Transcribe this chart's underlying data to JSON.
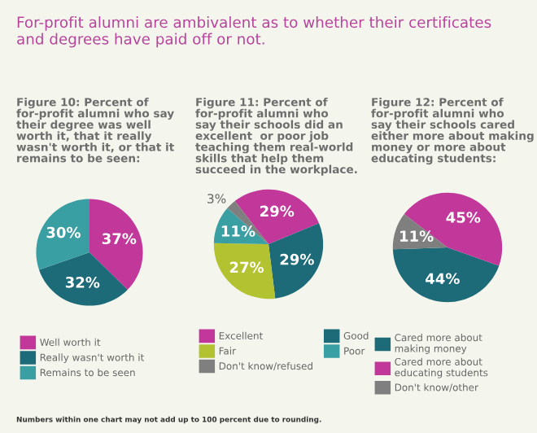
{
  "chart_data": [
    {
      "type": "pie",
      "title": "Figure 10: Percent of\nfor-profit alumni who say\ntheir degree was well\nworth it, that it really\nwasn't worth it, or that it\nremains to be seen:",
      "annotations": [
        "For-profit alumni are ambivalent as to whether their certificates\nand degrees have paid off or not.",
        "Numbers within one chart may not add up to 100 percent due to rounding."
      ],
      "categories": [
        "Well worth it",
        "Really wasn't worth it",
        "Remains to be seen"
      ],
      "values": [
        37,
        32,
        30
      ],
      "value_labels": [
        "37%",
        "32%",
        "30%"
      ],
      "colors": [
        "#c2379a",
        "#1d6a78",
        "#3a9fa3"
      ],
      "legend": "bottom"
    },
    {
      "type": "pie",
      "title": "Figure 11: Percent of\nfor-profit alumni who\nsay their schools did an\nexcellent  or poor job\nteaching them real-world\nskills that help them\nsucceed in the workplace.",
      "categories": [
        "Excellent",
        "Good",
        "Fair",
        "Poor",
        "Don't know/refused"
      ],
      "values": [
        29,
        29,
        27,
        11,
        3
      ],
      "value_labels": [
        "29%",
        "29%",
        "27%",
        "11%",
        "3%"
      ],
      "colors": [
        "#c2379a",
        "#1d6a78",
        "#b3c230",
        "#3a9fa3",
        "#7f7f7f"
      ],
      "legend": "bottom"
    },
    {
      "type": "pie",
      "title": "Figure 12: Percent of\nfor-profit alumni who\nsay their schools cared\neither more about making\nmoney or more about\neducating students:",
      "categories": [
        "Cared more about\nmaking money",
        "Cared more about\neducating students",
        "Don't know/other"
      ],
      "values": [
        44,
        45,
        11
      ],
      "value_labels": [
        "44%",
        "45%",
        "11%"
      ],
      "colors": [
        "#1d6a78",
        "#c2379a",
        "#7f7f7f"
      ],
      "legend": "bottom"
    }
  ]
}
